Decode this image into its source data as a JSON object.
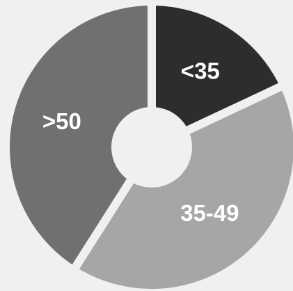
{
  "chart_data": {
    "type": "pie",
    "donut": true,
    "title": "",
    "categories": [
      "<35",
      "35-49",
      ">50"
    ],
    "values": [
      18,
      41,
      41
    ],
    "colors": [
      "#2d2d2d",
      "#a6a6a6",
      "#707070"
    ],
    "background": "#f0f0f0",
    "gap_color": "#f0f0f0",
    "legend": "none",
    "labels_inside": true
  }
}
